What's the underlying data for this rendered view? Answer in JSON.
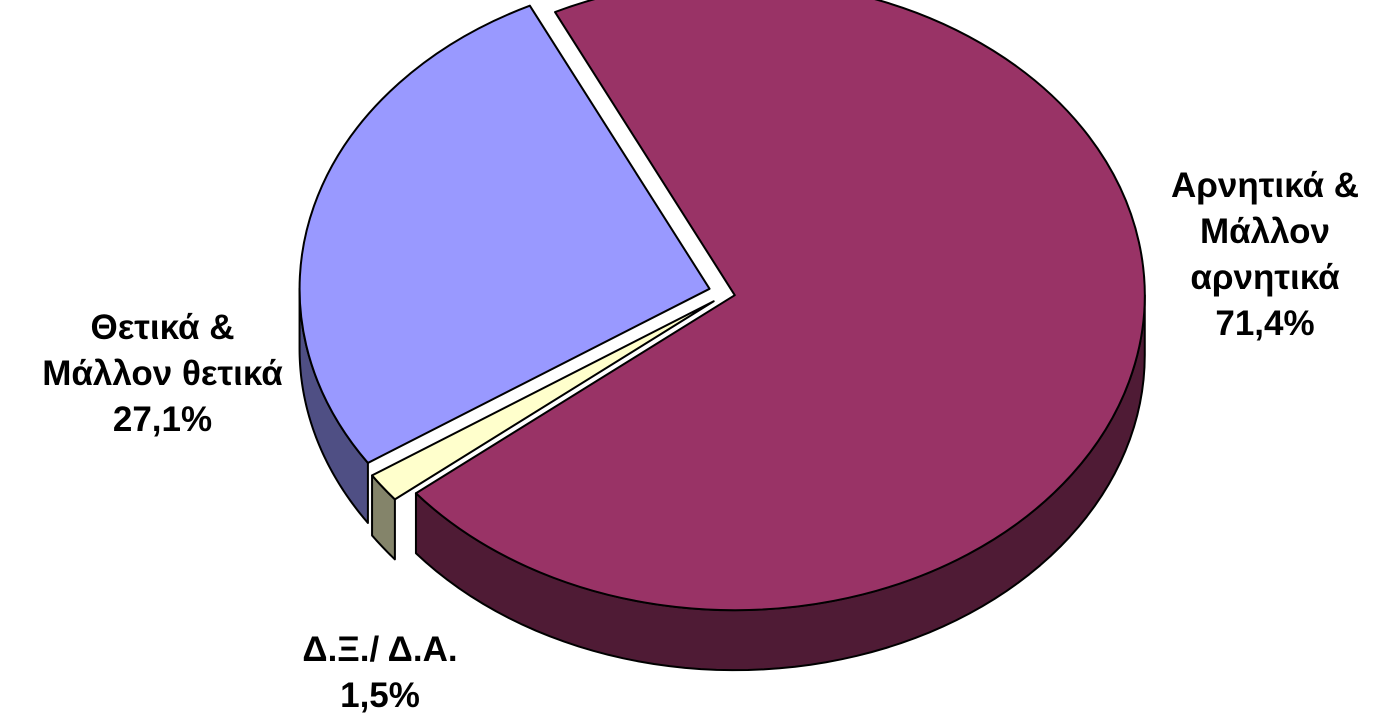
{
  "chart_data": {
    "type": "pie",
    "title": "",
    "slices": [
      {
        "id": "negative",
        "label_lines": [
          "Αρνητικά &",
          "Μάλλον",
          "αρνητικά"
        ],
        "value_text": "71,4%",
        "value": 71.4,
        "color": "#993366",
        "side_color": "#4f1b35"
      },
      {
        "id": "dont-know",
        "label_lines": [
          "Δ.Ξ./ Δ.Α."
        ],
        "value_text": "1,5%",
        "value": 1.5,
        "color": "#ffffcc",
        "side_color": "#84846a"
      },
      {
        "id": "positive",
        "label_lines": [
          "Θετικά &",
          "Μάλλον θετικά"
        ],
        "value_text": "27,1%",
        "value": 27.1,
        "color": "#9999ff",
        "side_color": "#4f4f84"
      }
    ],
    "legend": "none",
    "style": "3d-exploded"
  }
}
